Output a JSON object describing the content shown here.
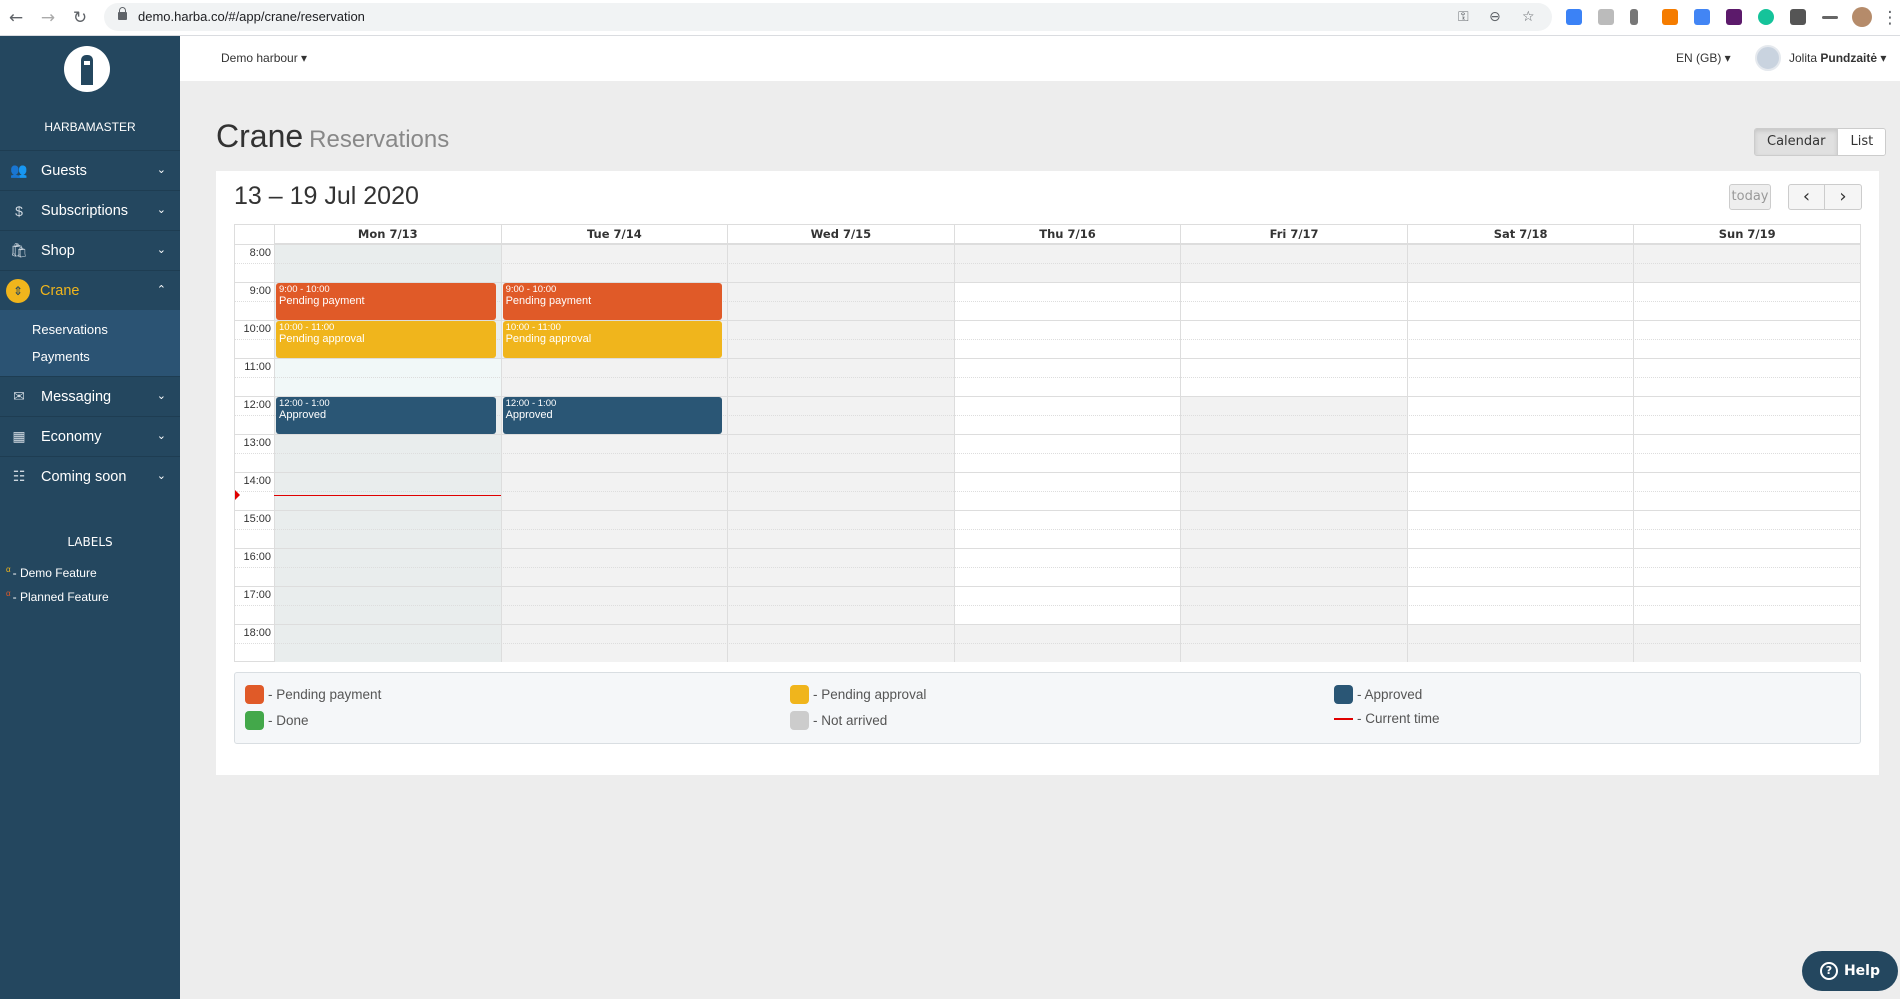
{
  "browser": {
    "url": "demo.harba.co/#/app/crane/reservation"
  },
  "sidebar": {
    "brand": "HARBAMASTER",
    "items": [
      {
        "label": "Guests",
        "icon": "users-icon",
        "glyph": "👥"
      },
      {
        "label": "Subscriptions",
        "icon": "dollar-icon",
        "glyph": "$"
      },
      {
        "label": "Shop",
        "icon": "shopping-bag-icon",
        "glyph": "🛍"
      },
      {
        "label": "Crane",
        "icon": "crane-sort-icon",
        "glyph": "⇕",
        "active": true,
        "children": [
          {
            "label": "Reservations"
          },
          {
            "label": "Payments"
          }
        ]
      },
      {
        "label": "Messaging",
        "icon": "envelope-icon",
        "glyph": "✉"
      },
      {
        "label": "Economy",
        "icon": "calculator-icon",
        "glyph": "▦"
      },
      {
        "label": "Coming soon",
        "icon": "grid-icon",
        "glyph": "☷"
      }
    ],
    "labels_title": "LABELS",
    "labels": [
      {
        "mark": "α",
        "text": "- Demo Feature",
        "color": "#f0b51c"
      },
      {
        "mark": "α",
        "text": "- Planned Feature",
        "color": "#e05a28"
      }
    ]
  },
  "topbar": {
    "harbour": "Demo harbour",
    "language": "EN (GB)",
    "user_first": "Jolita",
    "user_last": "Pundzaitė"
  },
  "page": {
    "title": "Crane",
    "subtitle": "Reservations",
    "view_buttons": [
      {
        "label": "Calendar",
        "active": true
      },
      {
        "label": "List"
      }
    ]
  },
  "calendar": {
    "range": "13 – 19 Jul 2020",
    "today_label": "today",
    "prev": "‹",
    "next": "›",
    "days": [
      {
        "label": "Mon 7/13",
        "today": true,
        "open_hours": [
          11
        ]
      },
      {
        "label": "Tue 7/14",
        "open_hours": []
      },
      {
        "label": "Wed 7/15",
        "open_hours": []
      },
      {
        "label": "Thu 7/16",
        "open_hours": [
          9,
          10,
          11,
          12,
          13,
          14,
          15,
          16,
          17
        ]
      },
      {
        "label": "Fri 7/17",
        "open_hours": [
          9,
          10,
          11
        ]
      },
      {
        "label": "Sat 7/18",
        "open_hours": [
          9,
          10,
          11,
          12,
          13,
          14,
          15,
          16,
          17
        ]
      },
      {
        "label": "Sun 7/19",
        "open_hours": [
          9,
          10,
          11,
          12,
          13,
          14,
          15,
          16,
          17
        ]
      }
    ],
    "hours": [
      "8:00",
      "9:00",
      "10:00",
      "11:00",
      "12:00",
      "13:00",
      "14:00",
      "15:00",
      "16:00",
      "17:00",
      "18:00"
    ],
    "current_time": {
      "day": 0,
      "hour": 14.6
    },
    "events": [
      {
        "day": 0,
        "start": 9,
        "end": 10,
        "time": "9:00 - 10:00",
        "status": "Pending payment",
        "status_key": "pending_payment"
      },
      {
        "day": 0,
        "start": 10,
        "end": 11,
        "time": "10:00 - 11:00",
        "status": "Pending approval",
        "status_key": "pending_approval"
      },
      {
        "day": 0,
        "start": 12,
        "end": 13,
        "time": "12:00 - 1:00",
        "status": "Approved",
        "status_key": "approved"
      },
      {
        "day": 1,
        "start": 9,
        "end": 10,
        "time": "9:00 - 10:00",
        "status": "Pending payment",
        "status_key": "pending_payment"
      },
      {
        "day": 1,
        "start": 10,
        "end": 11,
        "time": "10:00 - 11:00",
        "status": "Pending approval",
        "status_key": "pending_approval"
      },
      {
        "day": 1,
        "start": 12,
        "end": 13,
        "time": "12:00 - 1:00",
        "status": "Approved",
        "status_key": "approved"
      }
    ]
  },
  "colors": {
    "pending_payment": "#e05a28",
    "pending_approval": "#f0b51c",
    "approved": "#2a5675",
    "done": "#43a84a",
    "not_arrived": "#cccccc",
    "current_time": "#e00000",
    "sidebar": "#24475f"
  },
  "legend": [
    {
      "label": "- Pending payment",
      "key": "pending_payment"
    },
    {
      "label": "- Pending approval",
      "key": "pending_approval"
    },
    {
      "label": "- Approved",
      "key": "approved"
    },
    {
      "label": "- Done",
      "key": "done"
    },
    {
      "label": "- Not arrived",
      "key": "not_arrived"
    },
    {
      "label": "- Current time",
      "key": "current_time",
      "line": true
    }
  ],
  "help": {
    "label": "Help"
  }
}
